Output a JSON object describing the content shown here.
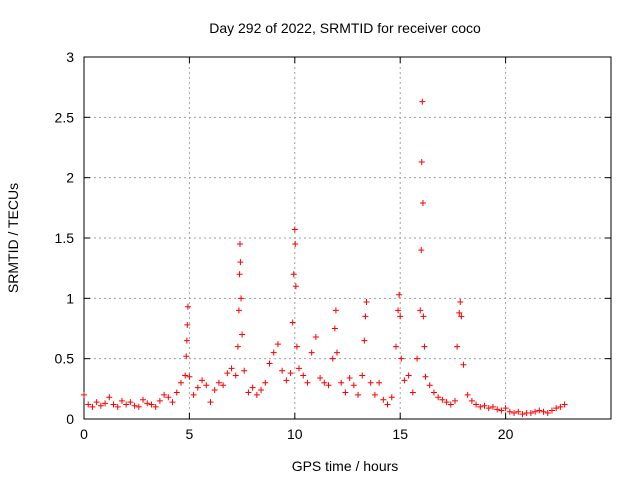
{
  "chart_data": {
    "type": "scatter",
    "title": "Day 292 of 2022, SRMTID for receiver coco",
    "xlabel": "GPS time / hours",
    "ylabel": "SRMTID / TECUs",
    "xlim": [
      0,
      25
    ],
    "ylim": [
      0,
      3
    ],
    "x_ticks": [
      0,
      5,
      10,
      15,
      20
    ],
    "x_tick_labels": [
      "0",
      "5",
      "10",
      "15",
      "20"
    ],
    "y_ticks": [
      0,
      0.5,
      1,
      1.5,
      2,
      2.5,
      3
    ],
    "y_tick_labels": [
      "0",
      "0.5",
      "1",
      "1.5",
      "2",
      "2.5",
      "3"
    ],
    "grid": true,
    "marker": "+",
    "series": [
      {
        "name": "SRMTID",
        "color": "#ff0000",
        "x": [
          0.0,
          0.2,
          0.4,
          0.6,
          0.8,
          1.0,
          1.2,
          1.4,
          1.6,
          1.8,
          2.0,
          2.2,
          2.4,
          2.6,
          2.8,
          3.0,
          3.2,
          3.4,
          3.6,
          3.8,
          4.0,
          4.2,
          4.4,
          4.6,
          4.8,
          4.85,
          4.88,
          4.9,
          4.93,
          5.0,
          5.2,
          5.4,
          5.6,
          5.8,
          6.0,
          6.2,
          6.4,
          6.6,
          6.8,
          7.0,
          7.2,
          7.3,
          7.35,
          7.38,
          7.4,
          7.42,
          7.45,
          7.5,
          7.6,
          7.8,
          8.0,
          8.2,
          8.4,
          8.6,
          8.8,
          9.0,
          9.2,
          9.4,
          9.6,
          9.8,
          9.9,
          9.95,
          10.0,
          10.02,
          10.05,
          10.1,
          10.2,
          10.4,
          10.6,
          10.8,
          11.0,
          11.2,
          11.4,
          11.6,
          11.8,
          11.9,
          11.95,
          12.0,
          12.2,
          12.4,
          12.6,
          12.8,
          13.0,
          13.2,
          13.3,
          13.35,
          13.4,
          13.6,
          13.8,
          14.0,
          14.2,
          14.4,
          14.6,
          14.8,
          14.9,
          14.95,
          15.0,
          15.05,
          15.2,
          15.4,
          15.6,
          15.8,
          15.95,
          16.0,
          16.02,
          16.05,
          16.08,
          16.1,
          16.15,
          16.2,
          16.4,
          16.6,
          16.8,
          17.0,
          17.2,
          17.4,
          17.6,
          17.7,
          17.8,
          17.85,
          17.9,
          18.0,
          18.2,
          18.4,
          18.6,
          18.8,
          19.0,
          19.2,
          19.4,
          19.6,
          19.8,
          20.0,
          20.2,
          20.4,
          20.6,
          20.8,
          21.0,
          21.2,
          21.4,
          21.6,
          21.8,
          22.0,
          22.2,
          22.4,
          22.6,
          22.8
        ],
        "y": [
          0.2,
          0.12,
          0.1,
          0.14,
          0.11,
          0.13,
          0.18,
          0.12,
          0.1,
          0.15,
          0.12,
          0.14,
          0.11,
          0.1,
          0.16,
          0.13,
          0.12,
          0.1,
          0.15,
          0.2,
          0.18,
          0.14,
          0.22,
          0.3,
          0.36,
          0.52,
          0.65,
          0.78,
          0.93,
          0.35,
          0.2,
          0.26,
          0.32,
          0.28,
          0.14,
          0.24,
          0.3,
          0.28,
          0.38,
          0.42,
          0.36,
          0.6,
          0.9,
          1.2,
          1.45,
          1.3,
          1.0,
          0.7,
          0.4,
          0.22,
          0.26,
          0.2,
          0.24,
          0.3,
          0.46,
          0.55,
          0.62,
          0.4,
          0.32,
          0.38,
          0.8,
          1.2,
          1.57,
          1.45,
          1.1,
          0.6,
          0.42,
          0.36,
          0.3,
          0.55,
          0.68,
          0.34,
          0.3,
          0.28,
          0.5,
          0.75,
          0.9,
          0.55,
          0.3,
          0.22,
          0.34,
          0.28,
          0.2,
          0.36,
          0.65,
          0.85,
          0.97,
          0.3,
          0.2,
          0.3,
          0.16,
          0.12,
          0.18,
          0.6,
          0.9,
          1.03,
          0.85,
          0.5,
          0.32,
          0.36,
          0.22,
          0.5,
          0.9,
          1.4,
          2.13,
          2.63,
          1.79,
          0.85,
          0.6,
          0.35,
          0.28,
          0.22,
          0.18,
          0.16,
          0.14,
          0.12,
          0.15,
          0.6,
          0.88,
          0.97,
          0.85,
          0.45,
          0.2,
          0.15,
          0.12,
          0.1,
          0.11,
          0.09,
          0.1,
          0.08,
          0.07,
          0.09,
          0.06,
          0.05,
          0.06,
          0.04,
          0.05,
          0.05,
          0.06,
          0.07,
          0.06,
          0.05,
          0.07,
          0.09,
          0.1,
          0.12
        ]
      }
    ]
  }
}
